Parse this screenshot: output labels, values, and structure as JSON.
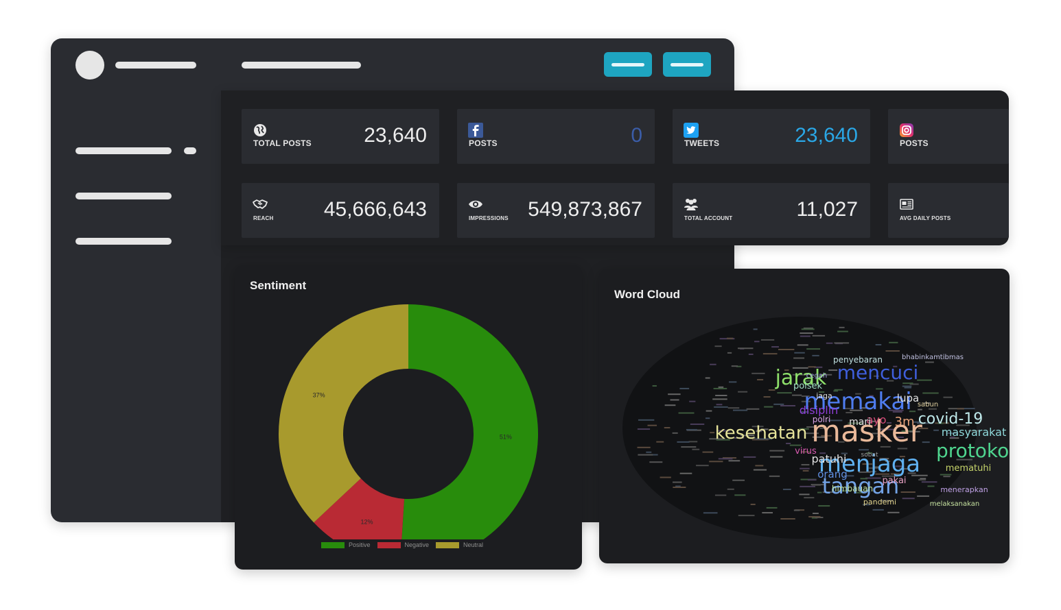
{
  "stats": [
    {
      "icon": "globe-icon",
      "label": "TOTAL POSTS",
      "value": "23,640",
      "color": "#eeeeee"
    },
    {
      "icon": "facebook-icon",
      "label": "POSTS",
      "value": "0",
      "color": "#3b5998"
    },
    {
      "icon": "twitter-icon",
      "label": "TWEETS",
      "value": "23,640",
      "color": "#1da1f2"
    },
    {
      "icon": "instagram-icon",
      "label": "POSTS",
      "value": "",
      "color": "#eeeeee"
    },
    {
      "icon": "handshake-icon",
      "label": "REACH",
      "value": "45,666,643",
      "color": "#eeeeee"
    },
    {
      "icon": "eye-icon",
      "label": "IMPRESSIONS",
      "value": "549,873,867",
      "color": "#eeeeee"
    },
    {
      "icon": "users-icon",
      "label": "TOTAL ACCOUNT",
      "value": "11,027",
      "color": "#eeeeee"
    },
    {
      "icon": "newspaper-icon",
      "label": "AVG DAILY POSTS",
      "value": "",
      "color": "#eeeeee"
    }
  ],
  "sentiment": {
    "title": "Sentiment",
    "chart_data": {
      "type": "pie",
      "categories": [
        "Positive",
        "Negative",
        "Neutral"
      ],
      "values": [
        51,
        12,
        37
      ],
      "labels": [
        "51%",
        "12%",
        "37%"
      ],
      "colors": [
        "#288c0c",
        "#b92a34",
        "#a89a2d"
      ],
      "legend": "bottom"
    }
  },
  "wordcloud": {
    "title": "Word Cloud",
    "words": [
      {
        "text": "masker",
        "color": "#e9b99a"
      },
      {
        "text": "memakai",
        "color": "#4f7df0"
      },
      {
        "text": "menjaga",
        "color": "#5fb0f0"
      },
      {
        "text": "tangan",
        "color": "#73a3e6"
      },
      {
        "text": "jarak",
        "color": "#8ee06a"
      },
      {
        "text": "mencuci",
        "color": "#3f5fdc"
      },
      {
        "text": "kesehatan",
        "color": "#e6e39a"
      },
      {
        "text": "protokol",
        "color": "#4fd58f"
      },
      {
        "text": "covid-19",
        "color": "#bfe9ea"
      },
      {
        "text": "masyarakat",
        "color": "#8fd8da"
      },
      {
        "text": "mematuhi",
        "color": "#c6d46a"
      },
      {
        "text": "3m",
        "color": "#e8a27a"
      },
      {
        "text": "ayo",
        "color": "#d84c7a"
      },
      {
        "text": "mari",
        "color": "#e0e0e0"
      },
      {
        "text": "polri",
        "color": "#d8a2e6"
      },
      {
        "text": "disiplin",
        "color": "#8e3fd8"
      },
      {
        "text": "patuhi",
        "color": "#e0e0e0"
      },
      {
        "text": "orang",
        "color": "#5f8ee0"
      },
      {
        "text": "himbauan",
        "color": "#c0e2a0"
      },
      {
        "text": "pandemi",
        "color": "#e2d48e"
      },
      {
        "text": "pakai",
        "color": "#e9a2c5"
      },
      {
        "text": "menerapkan",
        "color": "#c0a2e6"
      },
      {
        "text": "melaksanakan",
        "color": "#c6e2a0"
      },
      {
        "text": "virus",
        "color": "#d85ab0"
      },
      {
        "text": "lupa",
        "color": "#e0e0e0"
      },
      {
        "text": "sabun",
        "color": "#e0d0a0"
      },
      {
        "text": "polsek",
        "color": "#a0e0c5"
      },
      {
        "text": "jaga",
        "color": "#e0e0e0"
      },
      {
        "text": "cegah",
        "color": "#a0a0e0"
      },
      {
        "text": "penyebaran",
        "color": "#c0e0e0"
      },
      {
        "text": "bhabinkamtibmas",
        "color": "#c0c0e0"
      },
      {
        "text": "sobat",
        "color": "#a0a0a0"
      }
    ]
  }
}
